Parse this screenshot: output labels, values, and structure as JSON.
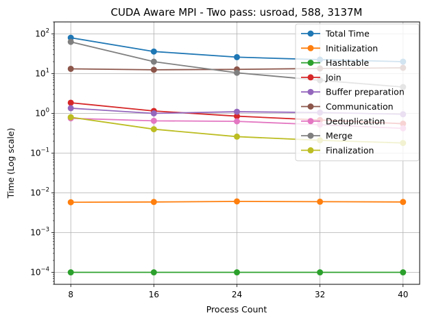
{
  "chart_data": {
    "type": "line",
    "title": "CUDA Aware MPI - Two pass: usroad, 588, 3137M",
    "xlabel": "Process Count",
    "ylabel": "Time (Log scale)",
    "yscale": "log",
    "ylim": [
      5e-05,
      200
    ],
    "xlim": [
      6.4,
      41.6
    ],
    "x": [
      8,
      16,
      24,
      32,
      40
    ],
    "xticks": [
      "8",
      "16",
      "24",
      "32",
      "40"
    ],
    "ytick_exponents": [
      "-4",
      "-3",
      "-2",
      "-1",
      "0",
      "1",
      "2"
    ],
    "grid": true,
    "legend_position": "top-right",
    "series": [
      {
        "name": "Total Time",
        "color": "#1f77b4",
        "values": [
          80,
          36,
          26,
          22.5,
          20
        ]
      },
      {
        "name": "Initialization",
        "color": "#ff7f0e",
        "values": [
          0.0058,
          0.0059,
          0.0061,
          0.006,
          0.0059
        ]
      },
      {
        "name": "Hashtable",
        "color": "#2ca02c",
        "values": [
          0.0001,
          0.0001,
          0.0001,
          0.0001,
          0.0001
        ]
      },
      {
        "name": "Join",
        "color": "#d62728",
        "values": [
          1.85,
          1.15,
          0.85,
          0.68,
          0.55
        ]
      },
      {
        "name": "Buffer preparation",
        "color": "#9467bd",
        "values": [
          1.35,
          1.0,
          1.1,
          1.05,
          0.95
        ]
      },
      {
        "name": "Communication",
        "color": "#8c564b",
        "values": [
          13.2,
          12.5,
          12.8,
          13.5,
          14
        ]
      },
      {
        "name": "Deduplication",
        "color": "#e377c2",
        "values": [
          0.75,
          0.65,
          0.63,
          0.52,
          0.42
        ]
      },
      {
        "name": "Merge",
        "color": "#7f7f7f",
        "values": [
          63,
          20,
          10.5,
          6.8,
          4.6
        ]
      },
      {
        "name": "Finalization",
        "color": "#bcbd22",
        "values": [
          0.8,
          0.4,
          0.26,
          0.21,
          0.18
        ]
      }
    ]
  }
}
